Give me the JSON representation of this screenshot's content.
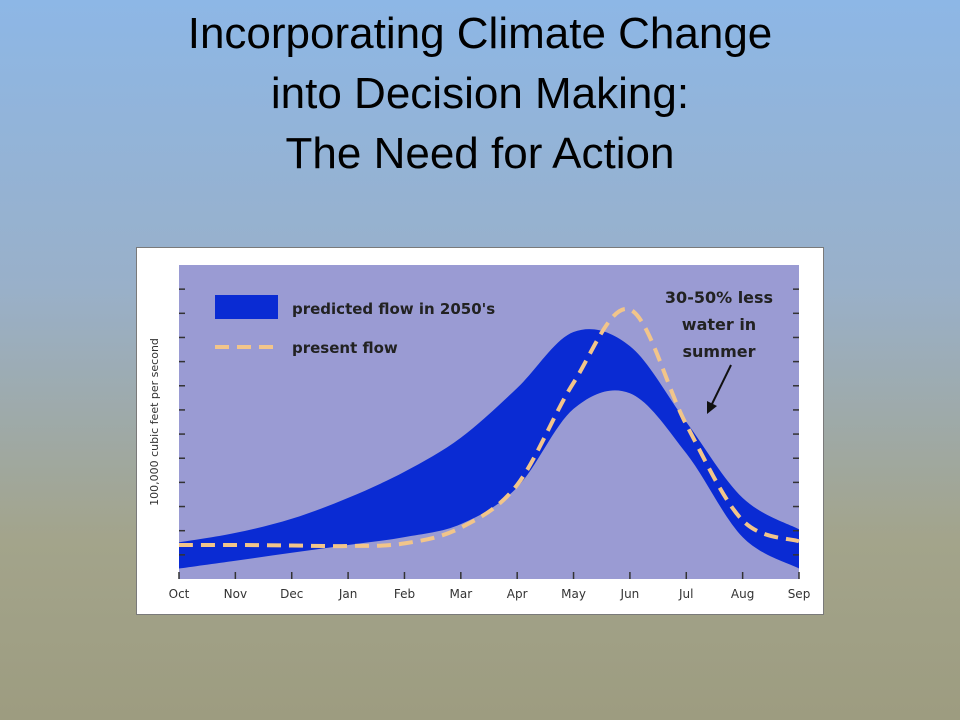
{
  "slide": {
    "title_lines": [
      "Incorporating Climate Change",
      "into Decision Making:",
      "The Need for Action"
    ]
  },
  "chart_data": {
    "type": "area",
    "ylabel": "100,000 cubic feet per second",
    "xlabel": "",
    "categories": [
      "Oct",
      "Nov",
      "Dec",
      "Jan",
      "Feb",
      "Mar",
      "Apr",
      "May",
      "Jun",
      "Jul",
      "Aug",
      "Sep"
    ],
    "ylim": [
      0,
      6
    ],
    "y_tick_count": 12,
    "series": [
      {
        "name": "predicted flow in 2050's",
        "kind": "band",
        "color": "#0a2bd3",
        "upper": [
          0.7,
          0.88,
          1.15,
          1.55,
          2.05,
          2.7,
          3.65,
          4.72,
          4.45,
          3.0,
          1.55,
          0.95
        ],
        "lower": [
          0.2,
          0.35,
          0.5,
          0.65,
          0.8,
          1.05,
          1.75,
          3.25,
          3.55,
          2.4,
          0.8,
          0.2
        ]
      },
      {
        "name": "present flow",
        "kind": "line",
        "dash": true,
        "color": "#f2c58a",
        "values": [
          0.65,
          0.65,
          0.64,
          0.63,
          0.68,
          0.98,
          1.8,
          3.75,
          5.15,
          2.95,
          1.12,
          0.72
        ]
      }
    ],
    "annotation": {
      "lines": [
        "30-50% less",
        "water in",
        "summer"
      ]
    },
    "colors": {
      "plot_background": "#9a9bd3",
      "band": "#0a2bd3",
      "present": "#f2c58a",
      "frame_background": "#ffffff"
    },
    "legend_position": "top-left",
    "grid": false
  }
}
